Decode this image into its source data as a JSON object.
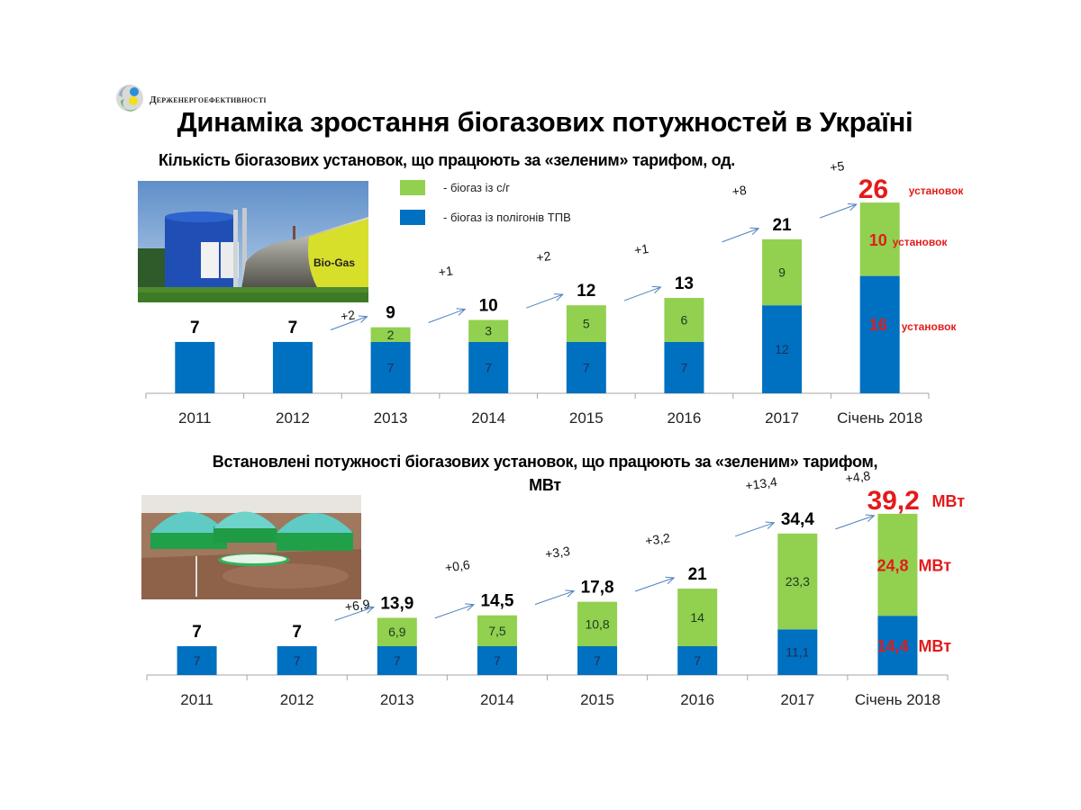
{
  "header": {
    "org_name": "Держенергоефективності",
    "title": "Динаміка зростання біогазових потужностей в Україні"
  },
  "colors": {
    "agri": "#92d050",
    "landfill": "#0070c0",
    "highlight": "#e31b1b",
    "arrow": "#4f81bd",
    "axis": "#a6a6a6"
  },
  "legend": [
    {
      "label": "- біогаз із с/г",
      "color": "#92d050"
    },
    {
      "label": "- біогаз із полігонів ТПВ",
      "color": "#0070c0"
    }
  ],
  "images": {
    "photo1_alt": "Біогазова установка (Bio-Gas)",
    "photo2_alt": "Біогазова станція з куполами"
  },
  "chart_data": [
    {
      "type": "bar",
      "stacked": true,
      "title": "Кількість біогазових установок, що працюють за «зеленим» тарифом, од.",
      "xlabel": "",
      "ylabel": "",
      "categories": [
        "2011",
        "2012",
        "2013",
        "2014",
        "2015",
        "2016",
        "2017",
        "Січень 2018"
      ],
      "series": [
        {
          "name": "біогаз із полігонів ТПВ",
          "values": [
            7,
            7,
            7,
            7,
            7,
            7,
            12,
            16
          ]
        },
        {
          "name": "біогаз із с/г",
          "values": [
            0,
            0,
            2,
            3,
            5,
            6,
            9,
            10
          ]
        }
      ],
      "segment_labels": {
        "landfill": [
          "",
          "",
          "7",
          "7",
          "7",
          "7",
          "12",
          "16"
        ],
        "agri": [
          "",
          "",
          "2",
          "3",
          "5",
          "6",
          "9",
          "10"
        ]
      },
      "totals": [
        "7",
        "7",
        "9",
        "10",
        "12",
        "13",
        "21",
        "26"
      ],
      "increments": [
        "+2",
        "+1",
        "+2",
        "+1",
        "+8",
        "+5"
      ],
      "last_unit": "установок",
      "ylim": [
        0,
        26
      ],
      "grid": false
    },
    {
      "type": "bar",
      "stacked": true,
      "title": "Встановлені потужності біогазових установок, що працюють за «зеленим» тарифом, МВт",
      "title_line1": "Встановлені потужності біогазових установок, що працюють за «зеленим» тарифом,",
      "title_line2": "МВт",
      "xlabel": "",
      "ylabel": "",
      "categories": [
        "2011",
        "2012",
        "2013",
        "2014",
        "2015",
        "2016",
        "2017",
        "Січень 2018"
      ],
      "series": [
        {
          "name": "біогаз із полігонів ТПВ",
          "values": [
            7,
            7,
            7,
            7,
            7,
            7,
            11.1,
            14.4
          ]
        },
        {
          "name": "біогаз із с/г",
          "values": [
            0,
            0,
            6.9,
            7.5,
            10.8,
            14,
            23.3,
            24.8
          ]
        }
      ],
      "segment_labels": {
        "landfill": [
          "7",
          "7",
          "7",
          "7",
          "7",
          "7",
          "11,1",
          "14,4"
        ],
        "agri": [
          "",
          "",
          "6,9",
          "7,5",
          "10,8",
          "14",
          "23,3",
          "24,8"
        ]
      },
      "totals": [
        "7",
        "7",
        "13,9",
        "14,5",
        "17,8",
        "21",
        "34,4",
        "39,2"
      ],
      "increments": [
        "+6,9",
        "+0,6",
        "+3,3",
        "+3,2",
        "+13,4",
        "+4,8"
      ],
      "last_unit": "МВт",
      "ylim": [
        0,
        39.2
      ],
      "grid": false
    }
  ]
}
